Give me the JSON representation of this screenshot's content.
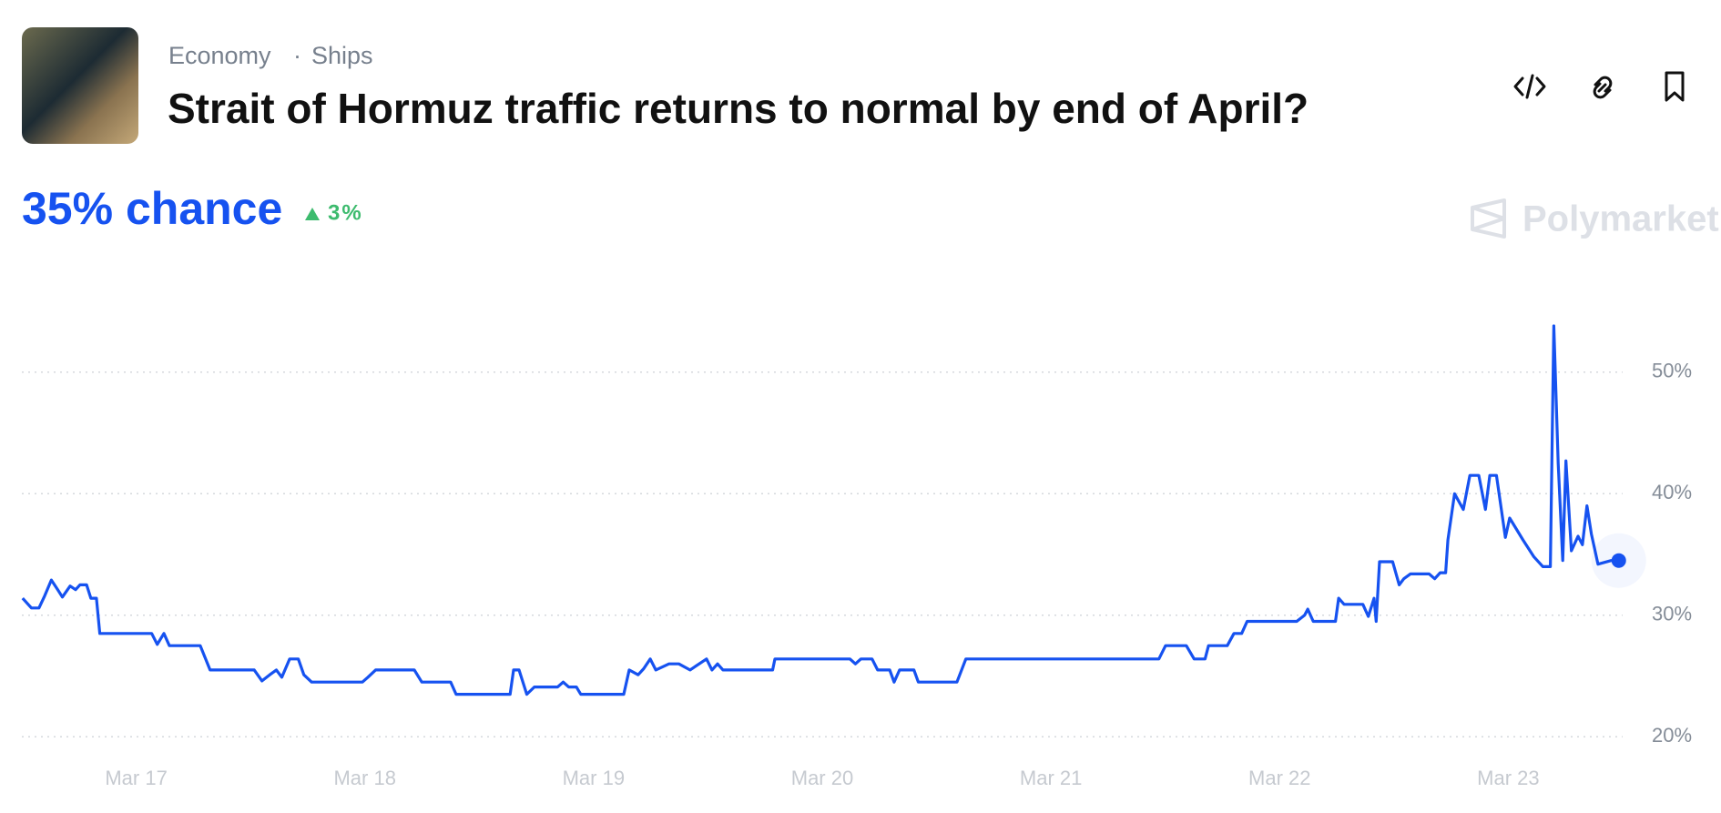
{
  "header": {
    "category": "Economy",
    "subcategory": "Ships",
    "title": "Strait of Hormuz traffic returns to normal by end of April?",
    "headline": "35% chance",
    "change": "3%",
    "brand": "Polymarket"
  },
  "chart_data": {
    "type": "line",
    "color": "#1652f0",
    "grid": true,
    "xlim": [
      16.5,
      23.5
    ],
    "ylim": [
      18,
      55
    ],
    "xticks": [
      {
        "value": 17,
        "label": "Mar 17"
      },
      {
        "value": 18,
        "label": "Mar 18"
      },
      {
        "value": 19,
        "label": "Mar 19"
      },
      {
        "value": 20,
        "label": "Mar 20"
      },
      {
        "value": 21,
        "label": "Mar 21"
      },
      {
        "value": 22,
        "label": "Mar 22"
      },
      {
        "value": 23,
        "label": "Mar 23"
      }
    ],
    "yticks": [
      {
        "value": 20,
        "label": "20%"
      },
      {
        "value": 30,
        "label": "30%"
      },
      {
        "value": 40,
        "label": "40%"
      },
      {
        "value": 50,
        "label": "50%"
      }
    ],
    "x": [
      16.503,
      16.542,
      16.575,
      16.6,
      16.629,
      16.657,
      16.677,
      16.711,
      16.735,
      16.754,
      16.783,
      16.802,
      16.826,
      16.841,
      17.068,
      17.092,
      17.121,
      17.145,
      17.28,
      17.323,
      17.516,
      17.55,
      17.584,
      17.613,
      17.637,
      17.671,
      17.709,
      17.733,
      17.767,
      17.989,
      18.013,
      18.047,
      18.216,
      18.249,
      18.375,
      18.399,
      18.635,
      18.65,
      18.674,
      18.708,
      18.741,
      18.843,
      18.867,
      18.891,
      18.925,
      18.944,
      19.132,
      19.156,
      19.195,
      19.219,
      19.248,
      19.272,
      19.33,
      19.373,
      19.422,
      19.494,
      19.518,
      19.542,
      19.566,
      19.629,
      19.783,
      19.793,
      20.121,
      20.145,
      20.169,
      20.218,
      20.242,
      20.295,
      20.314,
      20.338,
      20.401,
      20.42,
      20.589,
      20.628,
      21.472,
      21.501,
      21.592,
      21.626,
      21.674,
      21.689,
      21.771,
      21.8,
      21.834,
      21.858,
      22.075,
      22.109,
      22.123,
      22.147,
      22.244,
      22.258,
      22.282,
      22.364,
      22.388,
      22.413,
      22.422,
      22.437,
      22.494,
      22.523,
      22.543,
      22.572,
      22.654,
      22.678,
      22.702,
      22.726,
      22.736,
      22.765,
      22.803,
      22.832,
      22.871,
      22.9,
      22.919,
      22.948,
      22.987,
      23.006,
      23.064,
      23.112,
      23.151,
      23.184,
      23.199,
      23.218,
      23.238,
      23.252,
      23.276,
      23.305,
      23.324,
      23.344,
      23.363,
      23.392,
      23.45,
      23.483
    ],
    "values": [
      31.4,
      30.6,
      30.6,
      31.6,
      32.9,
      32.1,
      31.5,
      32.4,
      32.1,
      32.5,
      32.5,
      31.4,
      31.4,
      28.5,
      28.5,
      27.6,
      28.5,
      27.5,
      27.5,
      25.5,
      25.5,
      24.6,
      25.1,
      25.5,
      24.9,
      26.4,
      26.4,
      25.1,
      24.5,
      24.5,
      24.9,
      25.5,
      25.5,
      24.5,
      24.5,
      23.5,
      23.5,
      25.5,
      25.5,
      23.5,
      24.1,
      24.1,
      24.5,
      24.1,
      24.1,
      23.5,
      23.5,
      25.5,
      25.1,
      25.6,
      26.4,
      25.5,
      26.0,
      26.0,
      25.5,
      26.4,
      25.5,
      26.0,
      25.5,
      25.5,
      25.5,
      26.4,
      26.4,
      26.0,
      26.4,
      26.4,
      25.5,
      25.5,
      24.5,
      25.5,
      25.5,
      24.5,
      24.5,
      26.4,
      26.4,
      27.5,
      27.5,
      26.4,
      26.4,
      27.5,
      27.5,
      28.5,
      28.5,
      29.5,
      29.5,
      30.0,
      30.5,
      29.5,
      29.5,
      31.4,
      30.9,
      30.9,
      29.9,
      31.4,
      29.5,
      34.4,
      34.4,
      32.5,
      33.0,
      33.4,
      33.4,
      33.0,
      33.5,
      33.5,
      36.2,
      40.0,
      38.7,
      41.5,
      41.5,
      38.7,
      41.5,
      41.5,
      36.4,
      38.0,
      36.2,
      34.8,
      34.0,
      34.0,
      53.8,
      42.5,
      34.5,
      42.7,
      35.3,
      36.5,
      35.8,
      39.0,
      36.7,
      34.2,
      34.5,
      34.5
    ]
  }
}
